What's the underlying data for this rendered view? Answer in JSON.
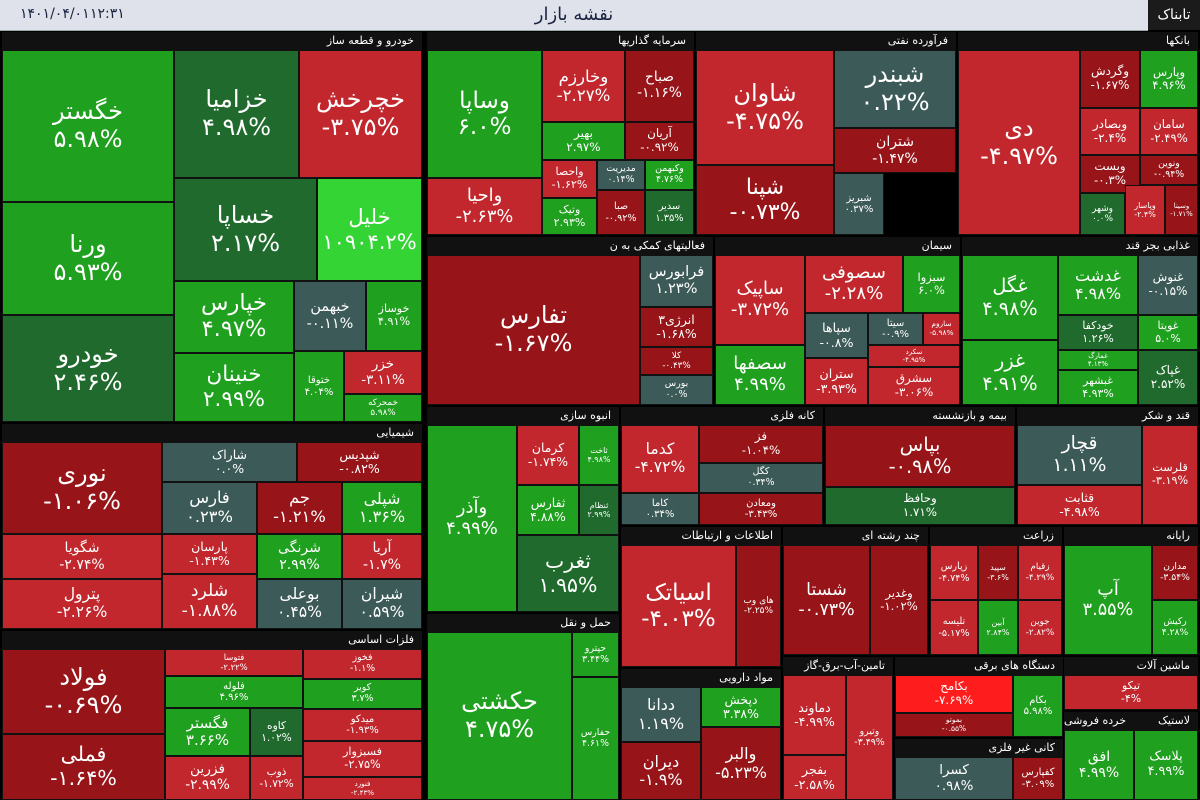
{
  "header": {
    "title": "نقشه بازار",
    "time": "۱۲:۳۱",
    "date": "۱۴۰۱/۰۴/۰۱",
    "logo": "تابناک"
  },
  "sectors": [
    {
      "title": "خودرو و قطعه ساز",
      "tiles": [
        {
          "name": "خگستر",
          "change": "۵.۹۸%"
        },
        {
          "name": "ورنا",
          "change": "۵.۹۳%"
        },
        {
          "name": "خودرو",
          "change": "۲.۴۶%"
        },
        {
          "name": "خزامیا",
          "change": "۴.۹۸%"
        },
        {
          "name": "خچرخش",
          "change": "-۳.۷۵%"
        },
        {
          "name": "خساپا",
          "change": "۲.۱۷%"
        },
        {
          "name": "خلیل",
          "change": "۱۰۹۰۴.۲%"
        },
        {
          "name": "خپارس",
          "change": "۴.۹۷%"
        },
        {
          "name": "خنینان",
          "change": "۲.۹۹%"
        },
        {
          "name": "خبهمن",
          "change": "-۰.۱۱%"
        },
        {
          "name": "خوساز",
          "change": "۴.۹۱%"
        },
        {
          "name": "ختوقا",
          "change": "۴.۰۴%"
        },
        {
          "name": "خزر",
          "change": "-۳.۱۱%"
        },
        {
          "name": "خمحرکه",
          "change": "۵.۹۸%"
        }
      ]
    },
    {
      "title": "شیمیایی",
      "tiles": [
        {
          "name": "نوری",
          "change": "-۱.۰۶%"
        },
        {
          "name": "شگویا",
          "change": "-۲.۷۴%"
        },
        {
          "name": "پترول",
          "change": "-۲.۲۶%"
        },
        {
          "name": "شاراک",
          "change": "۰.۰%"
        },
        {
          "name": "فارس",
          "change": "۰.۲۳%"
        },
        {
          "name": "شپدیس",
          "change": "-۰.۸۲%"
        },
        {
          "name": "جم",
          "change": "-۱.۲۱%"
        },
        {
          "name": "شپلی",
          "change": "۱.۳۶%"
        },
        {
          "name": "پارسان",
          "change": "-۱.۴۳%"
        },
        {
          "name": "شلرد",
          "change": "-۱.۸۸%"
        },
        {
          "name": "شرنگی",
          "change": "۲.۹۹%"
        },
        {
          "name": "بوعلی",
          "change": "۰.۴۵%"
        },
        {
          "name": "آریا",
          "change": "-۱.۷%"
        },
        {
          "name": "شیران",
          "change": "۰.۵۹%"
        }
      ]
    },
    {
      "title": "فلزات اساسی",
      "tiles": [
        {
          "name": "فولاد",
          "change": "-۰.۶۹%"
        },
        {
          "name": "فملی",
          "change": "-۱.۶۴%"
        },
        {
          "name": "فتوسا",
          "change": "-۲.۲۲%"
        },
        {
          "name": "فخوز",
          "change": "-۱.۱%"
        },
        {
          "name": "فلوله",
          "change": "۴.۹۶%"
        },
        {
          "name": "کویر",
          "change": "۳.۷%"
        },
        {
          "name": "فگستر",
          "change": "۳.۶۶%"
        },
        {
          "name": "کاوه",
          "change": "۱.۰۲%"
        },
        {
          "name": "میدکو",
          "change": "-۱.۹۳%"
        },
        {
          "name": "فسبزوار",
          "change": "-۲.۷۵%"
        },
        {
          "name": "فزرین",
          "change": "-۲.۹۹%"
        },
        {
          "name": "ذوب",
          "change": "-۱.۷۲%"
        },
        {
          "name": "فنورد",
          "change": "-۲.۴۳%"
        }
      ]
    },
    {
      "title": "سرمایه گذاریها",
      "tiles": [
        {
          "name": "وساپا",
          "change": "۶.۰%"
        },
        {
          "name": "واحیا",
          "change": "-۲.۶۳%"
        },
        {
          "name": "وخارزم",
          "change": "-۲.۲۷%"
        },
        {
          "name": "صباح",
          "change": "-۱.۱۶%"
        },
        {
          "name": "بهیر",
          "change": "۲.۹۷%"
        },
        {
          "name": "آریان",
          "change": "-۰.۹۲%"
        },
        {
          "name": "واحصا",
          "change": "-۱.۶۲%"
        },
        {
          "name": "مدیریت",
          "change": "۰.۱۴%"
        },
        {
          "name": "وکبهمن",
          "change": "۴.۷۶%"
        },
        {
          "name": "وتیک",
          "change": "۲.۹۳%"
        },
        {
          "name": "صبا",
          "change": "-۰.۹۲%"
        },
        {
          "name": "سدیر",
          "change": "۱.۳۵%"
        }
      ]
    },
    {
      "title": "فرآورده نفتی",
      "tiles": [
        {
          "name": "شاوان",
          "change": "-۴.۷۵%"
        },
        {
          "name": "شپنا",
          "change": "-۰.۷۳%"
        },
        {
          "name": "شبندر",
          "change": "۰.۲۲%"
        },
        {
          "name": "شتران",
          "change": "-۱.۴۷%"
        },
        {
          "name": "شبریز",
          "change": "۰.۳۷%"
        }
      ]
    },
    {
      "title": "بانکها",
      "tiles": [
        {
          "name": "دی",
          "change": "-۴.۹۷%"
        },
        {
          "name": "وگردش",
          "change": "-۱.۶۷%"
        },
        {
          "name": "وپارس",
          "change": "۴.۹۶%"
        },
        {
          "name": "وبصادر",
          "change": "-۲.۴%"
        },
        {
          "name": "سامان",
          "change": "-۲.۴۹%"
        },
        {
          "name": "وبست",
          "change": "-۰.۳%"
        },
        {
          "name": "ونوین",
          "change": "-۰.۹۴%"
        },
        {
          "name": "وشهر",
          "change": "۰.۰%"
        },
        {
          "name": "وپاسار",
          "change": "-۲.۴%"
        },
        {
          "name": "وسینا",
          "change": "-۱.۷۱%"
        }
      ]
    },
    {
      "title": "فعالیتهای کمکی به ن",
      "tiles": [
        {
          "name": "تفارس",
          "change": "-۱.۶۷%"
        },
        {
          "name": "فرابورس",
          "change": "۱.۲۳%"
        },
        {
          "name": "انرژی۳",
          "change": "-۱.۶۸%"
        },
        {
          "name": "کلا",
          "change": "-۰.۴۳%"
        },
        {
          "name": "بورس",
          "change": "۰.۰%"
        }
      ]
    },
    {
      "title": "سیمان",
      "tiles": [
        {
          "name": "ساپیک",
          "change": "-۳.۷۲%"
        },
        {
          "name": "سصفها",
          "change": "۴.۹۹%"
        },
        {
          "name": "سصوفی",
          "change": "-۲.۲۸%"
        },
        {
          "name": "سبزوا",
          "change": "۶.۰%"
        },
        {
          "name": "سپاها",
          "change": "-۰.۸%"
        },
        {
          "name": "سیتا",
          "change": "-۰.۹%"
        },
        {
          "name": "ساروم",
          "change": "-۵.۹۸%"
        },
        {
          "name": "ستران",
          "change": "-۳.۹۳%"
        },
        {
          "name": "سکرد",
          "change": "-۴.۹۵%"
        },
        {
          "name": "سشرق",
          "change": "-۳.۰۶%"
        }
      ]
    },
    {
      "title": "غذایی بجز قند",
      "tiles": [
        {
          "name": "غگل",
          "change": "۴.۹۸%"
        },
        {
          "name": "غزر",
          "change": "۴.۹۱%"
        },
        {
          "name": "غدشت",
          "change": "۴.۹۸%"
        },
        {
          "name": "غنوش",
          "change": "-۰.۱۵%"
        },
        {
          "name": "خودکفا",
          "change": "۱.۲۶%"
        },
        {
          "name": "غویتا",
          "change": "۵.۰%"
        },
        {
          "name": "غمارگ",
          "change": "۴.۱۳%"
        },
        {
          "name": "غبشهر",
          "change": "۴.۹۳%"
        },
        {
          "name": "غپاک",
          "change": "۲.۵۲%"
        }
      ]
    },
    {
      "title": "انبوه سازی",
      "tiles": [
        {
          "name": "وآذر",
          "change": "۴.۹۹%"
        },
        {
          "name": "کرمان",
          "change": "-۱.۷۴%"
        },
        {
          "name": "ثاخت",
          "change": "۴.۹۸%"
        },
        {
          "name": "ثفارس",
          "change": "۴.۸۸%"
        },
        {
          "name": "ثنظام",
          "change": "۲.۹۹%"
        },
        {
          "name": "ثغرب",
          "change": "۱.۹۵%"
        }
      ]
    },
    {
      "title": "کانه فلزی",
      "tiles": [
        {
          "name": "کدما",
          "change": "-۴.۷۲%"
        },
        {
          "name": "فز",
          "change": "-۱.۰۴%"
        },
        {
          "name": "کگل",
          "change": "۰.۳۴%"
        },
        {
          "name": "کاما",
          "change": "۰.۳۴%"
        },
        {
          "name": "ومعادن",
          "change": "-۳.۴۳%"
        }
      ]
    },
    {
      "title": "بیمه و بازنشسته",
      "tiles": [
        {
          "name": "بپاس",
          "change": "-۰.۹۸%"
        },
        {
          "name": "وحافظ",
          "change": "۱.۷۱%"
        }
      ]
    },
    {
      "title": "قند و شکر",
      "tiles": [
        {
          "name": "قچار",
          "change": "۱.۱۱%"
        },
        {
          "name": "قثابت",
          "change": "-۴.۹۸%"
        },
        {
          "name": "قلرست",
          "change": "-۳.۱۹%"
        }
      ]
    },
    {
      "title": "اطلاعات و ارتباطات",
      "tiles": [
        {
          "name": "اسیاتک",
          "change": "-۴.۰۳%"
        },
        {
          "name": "های وب",
          "change": "-۲.۲۵%"
        }
      ]
    },
    {
      "title": "چند رشته ای",
      "tiles": [
        {
          "name": "شستا",
          "change": "-۰.۷۳%"
        },
        {
          "name": "وغدیر",
          "change": "-۱.۰۲%"
        }
      ]
    },
    {
      "title": "زراعت",
      "tiles": [
        {
          "name": "زپارس",
          "change": "-۴.۷۴%"
        },
        {
          "name": "سپید",
          "change": "-۳.۶%"
        },
        {
          "name": "زقیام",
          "change": "-۴.۲۹%"
        },
        {
          "name": "تلیسه",
          "change": "-۵.۱۷%"
        },
        {
          "name": "آبین",
          "change": "۲.۸۴%"
        },
        {
          "name": "جوین",
          "change": "-۲.۸۲%"
        }
      ]
    },
    {
      "title": "رایانه",
      "tiles": [
        {
          "name": "آپ",
          "change": "۳.۵۵%"
        },
        {
          "name": "مدارن",
          "change": "-۳.۵۴%"
        },
        {
          "name": "رکیش",
          "change": "۴.۲۸%"
        }
      ]
    },
    {
      "title": "حمل و نقل",
      "tiles": [
        {
          "name": "حکشتی",
          "change": "۴.۷۵%"
        },
        {
          "name": "حپترو",
          "change": "۳.۴۴%"
        },
        {
          "name": "حفارس",
          "change": "۴.۶۱%"
        }
      ]
    },
    {
      "title": "مواد دارویی",
      "tiles": [
        {
          "name": "ددانا",
          "change": "۱.۱۹%"
        },
        {
          "name": "دیران",
          "change": "-۱.۹%"
        },
        {
          "name": "دپخش",
          "change": "۳.۳۸%"
        },
        {
          "name": "والبر",
          "change": "-۵.۲۳%"
        }
      ]
    },
    {
      "title": "تامین-آب-برق-گاز",
      "tiles": [
        {
          "name": "دماوند",
          "change": "-۴.۹۹%"
        },
        {
          "name": "بفجر",
          "change": "-۲.۵۸%"
        },
        {
          "name": "وتیرو",
          "change": "-۳.۴۹%"
        }
      ]
    },
    {
      "title": "دستگاه های برقی",
      "tiles": [
        {
          "name": "بکامح",
          "change": "-۷.۶۹%"
        },
        {
          "name": "بموتو",
          "change": "-۰.۵۵%"
        },
        {
          "name": "بکام",
          "change": "۵.۹۸%"
        }
      ]
    },
    {
      "title": "کانی غیر فلزی",
      "tiles": [
        {
          "name": "کسرا",
          "change": "۰.۹۸%"
        },
        {
          "name": "کفپارس",
          "change": "-۳.۰۹%"
        }
      ]
    },
    {
      "title": "ماشین آلات",
      "tiles": [
        {
          "name": "تیکو",
          "change": "-۴%"
        }
      ]
    },
    {
      "title": "خرده فروشی",
      "tiles": [
        {
          "name": "افق",
          "change": "۴.۹۹%"
        }
      ]
    },
    {
      "title": "لاستیک",
      "tiles": [
        {
          "name": "پلاسک",
          "change": "۴.۹۹%"
        }
      ]
    }
  ]
}
